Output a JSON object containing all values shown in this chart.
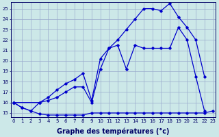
{
  "xlabel": "Graphe des températures (°c)",
  "background_color": "#cce8e8",
  "grid_color": "#99aacc",
  "line_color": "#0000cc",
  "x_ticks": [
    0,
    1,
    2,
    3,
    4,
    5,
    6,
    7,
    8,
    9,
    10,
    11,
    12,
    13,
    14,
    15,
    16,
    17,
    18,
    19,
    20,
    21,
    22,
    23
  ],
  "y_ticks": [
    15,
    16,
    17,
    18,
    19,
    20,
    21,
    22,
    23,
    24,
    25
  ],
  "ylim": [
    14.6,
    25.6
  ],
  "xlim": [
    -0.3,
    23.3
  ],
  "line1_x": [
    0,
    1,
    2,
    3,
    4,
    5,
    6,
    7,
    8,
    9,
    10,
    11,
    12,
    13,
    14,
    15,
    16,
    17,
    18,
    19,
    20,
    21,
    22,
    23
  ],
  "line1_y": [
    16,
    15.5,
    15.2,
    14.9,
    14.8,
    14.8,
    14.8,
    14.8,
    14.8,
    15.0,
    15.0,
    15.0,
    15.0,
    15.0,
    15.0,
    15.0,
    15.0,
    15.0,
    15.0,
    15.0,
    15.0,
    15.0,
    15.0,
    15.2
  ],
  "line2_x": [
    0,
    1,
    2,
    3,
    4,
    5,
    6,
    7,
    8,
    9,
    10,
    11,
    12,
    13,
    14,
    15,
    16,
    17,
    18,
    19,
    20,
    21,
    22
  ],
  "line2_y": [
    16,
    15.5,
    15.2,
    16.0,
    16.2,
    16.5,
    17.0,
    17.5,
    17.5,
    16.0,
    19.2,
    21.2,
    21.5,
    19.2,
    21.5,
    21.2,
    21.2,
    21.2,
    21.2,
    23.2,
    22.0,
    18.5,
    15.2
  ],
  "line3_x": [
    0,
    3,
    4,
    5,
    6,
    7,
    8,
    9,
    10,
    11,
    12,
    13,
    14,
    15,
    16,
    17,
    18,
    19,
    20,
    21,
    22
  ],
  "line3_y": [
    16,
    16.0,
    16.5,
    17.2,
    17.8,
    18.2,
    18.8,
    16.2,
    20.2,
    21.2,
    22.0,
    23.0,
    24.0,
    25.0,
    25.0,
    24.8,
    25.5,
    24.2,
    23.2,
    22.0,
    18.5
  ],
  "xlabel_fontsize": 7,
  "tick_fontsize": 5
}
